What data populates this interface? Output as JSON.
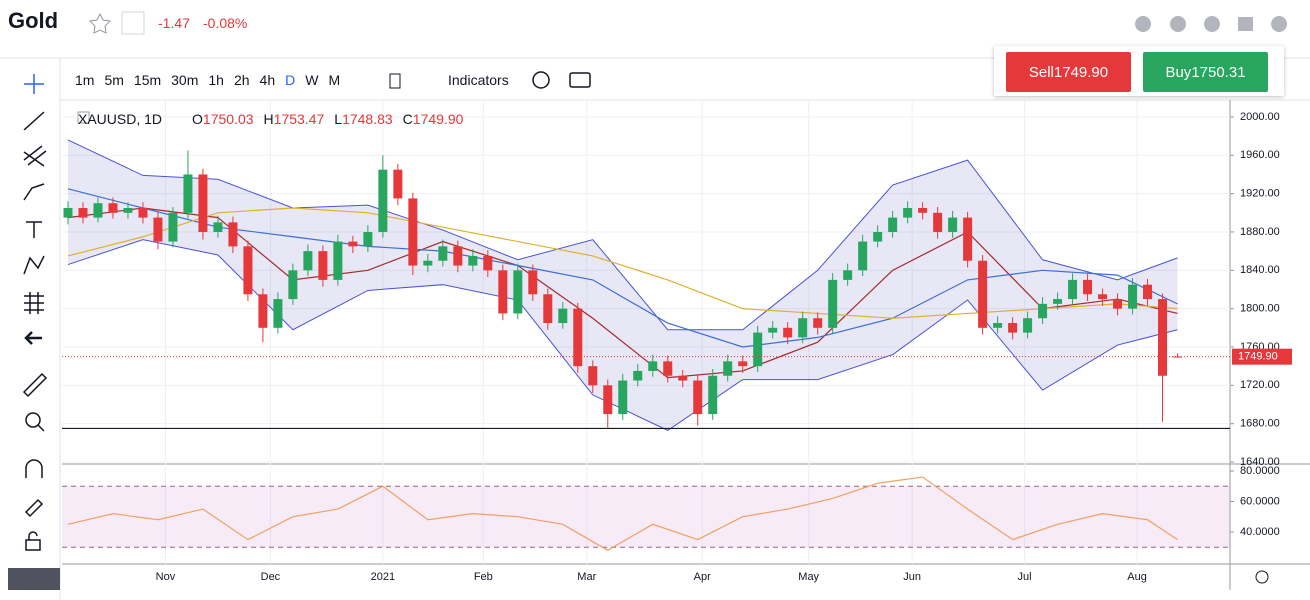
{
  "header": {
    "symbol": "Gold",
    "change": "-1.47",
    "change_pct": "-0.08%"
  },
  "toolbar": {
    "intervals": [
      "1m",
      "5m",
      "15m",
      "30m",
      "1h",
      "2h",
      "4h",
      "D",
      "W",
      "M"
    ],
    "indicators": "Indicators"
  },
  "trade": {
    "sell": "Sell",
    "sell_price": "1749.90",
    "buy": "Buy",
    "buy_price": "1750.31"
  },
  "legend": {
    "symbol": "XAUUSD, 1D",
    "items": [
      {
        "label": "O",
        "value": "1750.03"
      },
      {
        "label": "H",
        "value": "1753.47"
      },
      {
        "label": "L",
        "value": "1748.83"
      },
      {
        "label": "C",
        "value": "1749.90"
      }
    ]
  },
  "chart_data": [
    {
      "type": "candlestick",
      "up_color": "#28a55f",
      "down_color": "#e5383b",
      "candles": [
        [
          1895,
          1912,
          1888,
          1905
        ],
        [
          1905,
          1911,
          1889,
          1895
        ],
        [
          1895,
          1916,
          1890,
          1910
        ],
        [
          1910,
          1916,
          1894,
          1900
        ],
        [
          1900,
          1911,
          1894,
          1905
        ],
        [
          1905,
          1911,
          1889,
          1895
        ],
        [
          1895,
          1901,
          1862,
          1870
        ],
        [
          1870,
          1906,
          1864,
          1900
        ],
        [
          1900,
          1965,
          1894,
          1940
        ],
        [
          1940,
          1946,
          1872,
          1880
        ],
        [
          1880,
          1897,
          1874,
          1890
        ],
        [
          1890,
          1896,
          1858,
          1865
        ],
        [
          1865,
          1871,
          1808,
          1815
        ],
        [
          1815,
          1821,
          1765,
          1780
        ],
        [
          1780,
          1817,
          1774,
          1810
        ],
        [
          1810,
          1847,
          1804,
          1840
        ],
        [
          1840,
          1867,
          1834,
          1860
        ],
        [
          1860,
          1866,
          1823,
          1830
        ],
        [
          1830,
          1877,
          1824,
          1870
        ],
        [
          1870,
          1876,
          1858,
          1865
        ],
        [
          1865,
          1887,
          1859,
          1880
        ],
        [
          1880,
          1960,
          1874,
          1945
        ],
        [
          1945,
          1951,
          1908,
          1915
        ],
        [
          1915,
          1921,
          1835,
          1845
        ],
        [
          1845,
          1857,
          1838,
          1850
        ],
        [
          1850,
          1872,
          1844,
          1865
        ],
        [
          1865,
          1871,
          1838,
          1845
        ],
        [
          1845,
          1862,
          1839,
          1855
        ],
        [
          1855,
          1861,
          1833,
          1840
        ],
        [
          1840,
          1846,
          1788,
          1795
        ],
        [
          1795,
          1847,
          1789,
          1840
        ],
        [
          1840,
          1846,
          1808,
          1815
        ],
        [
          1815,
          1821,
          1778,
          1785
        ],
        [
          1785,
          1807,
          1779,
          1800
        ],
        [
          1800,
          1806,
          1733,
          1740
        ],
        [
          1740,
          1746,
          1712,
          1720
        ],
        [
          1720,
          1726,
          1675,
          1690
        ],
        [
          1690,
          1732,
          1684,
          1725
        ],
        [
          1725,
          1742,
          1719,
          1735
        ],
        [
          1735,
          1752,
          1729,
          1745
        ],
        [
          1745,
          1751,
          1723,
          1730
        ],
        [
          1730,
          1736,
          1718,
          1725
        ],
        [
          1725,
          1731,
          1678,
          1690
        ],
        [
          1690,
          1737,
          1684,
          1730
        ],
        [
          1730,
          1752,
          1724,
          1745
        ],
        [
          1745,
          1751,
          1733,
          1740
        ],
        [
          1740,
          1782,
          1734,
          1775
        ],
        [
          1775,
          1787,
          1769,
          1780
        ],
        [
          1780,
          1786,
          1763,
          1770
        ],
        [
          1770,
          1797,
          1764,
          1790
        ],
        [
          1790,
          1796,
          1773,
          1780
        ],
        [
          1780,
          1837,
          1774,
          1830
        ],
        [
          1830,
          1847,
          1824,
          1840
        ],
        [
          1840,
          1877,
          1834,
          1870
        ],
        [
          1870,
          1887,
          1864,
          1880
        ],
        [
          1880,
          1902,
          1874,
          1895
        ],
        [
          1895,
          1912,
          1889,
          1905
        ],
        [
          1905,
          1911,
          1893,
          1900
        ],
        [
          1900,
          1906,
          1873,
          1880
        ],
        [
          1880,
          1902,
          1874,
          1895
        ],
        [
          1895,
          1901,
          1843,
          1850
        ],
        [
          1850,
          1856,
          1773,
          1780
        ],
        [
          1780,
          1792,
          1774,
          1785
        ],
        [
          1785,
          1791,
          1768,
          1775
        ],
        [
          1775,
          1797,
          1769,
          1790
        ],
        [
          1790,
          1812,
          1784,
          1805
        ],
        [
          1805,
          1817,
          1799,
          1810
        ],
        [
          1810,
          1837,
          1804,
          1830
        ],
        [
          1830,
          1836,
          1808,
          1815
        ],
        [
          1815,
          1821,
          1803,
          1810
        ],
        [
          1810,
          1816,
          1793,
          1800
        ],
        [
          1800,
          1832,
          1794,
          1825
        ],
        [
          1825,
          1831,
          1803,
          1810
        ],
        [
          1810,
          1816,
          1682,
          1730
        ],
        [
          1750.03,
          1753.47,
          1748.83,
          1749.9
        ]
      ],
      "overlay_x": [
        0,
        5,
        10,
        15,
        20,
        25,
        30,
        35,
        40,
        45,
        50,
        55,
        60,
        65,
        70,
        74
      ],
      "bands": {
        "color": "#4a52d8",
        "fill": "rgba(120,123,200,0.18)",
        "upper": [
          1976,
          1939,
          1935,
          1905,
          1908,
          1882,
          1851,
          1872,
          1778,
          1778,
          1840,
          1929,
          1955,
          1851,
          1830,
          1853
        ],
        "lower": [
          1846,
          1872,
          1856,
          1778,
          1819,
          1825,
          1809,
          1710,
          1673,
          1726,
          1726,
          1752,
          1809,
          1715,
          1762,
          1778
        ]
      },
      "lines": [
        {
          "color": "#a52a2a",
          "values": [
            1895,
            1905,
            1895,
            1830,
            1840,
            1870,
            1845,
            1790,
            1728,
            1735,
            1765,
            1840,
            1880,
            1800,
            1810,
            1795
          ]
        },
        {
          "color": "#3a6fd8",
          "values": [
            1925,
            1905,
            1885,
            1875,
            1865,
            1860,
            1845,
            1830,
            1785,
            1760,
            1770,
            1790,
            1830,
            1840,
            1835,
            1805
          ]
        },
        {
          "color": "#e0b030",
          "values": [
            1855,
            1875,
            1900,
            1905,
            1900,
            1885,
            1870,
            1855,
            1830,
            1800,
            1795,
            1790,
            1795,
            1800,
            1805,
            1800
          ]
        }
      ],
      "hline": 1675,
      "price_label": "1749.90",
      "xlim": [
        -0.4,
        77.5
      ],
      "ylim": [
        1640,
        2017.7
      ],
      "yticks": [
        {
          "value": 2000,
          "label": "2000.00"
        },
        {
          "value": 1960,
          "label": "1960.00"
        },
        {
          "value": 1920,
          "label": "1920.00"
        },
        {
          "value": 1880,
          "label": "1880.00"
        },
        {
          "value": 1840,
          "label": "1840.00"
        },
        {
          "value": 1800,
          "label": "1800.00"
        },
        {
          "value": 1760,
          "label": "1760.00"
        },
        {
          "value": 1720,
          "label": "1720.00"
        },
        {
          "value": 1680,
          "label": "1680.00"
        },
        {
          "value": 1640,
          "label": "1640.00"
        }
      ],
      "xticks": [
        {
          "value": 6.5,
          "label": "Nov"
        },
        {
          "value": 13.5,
          "label": "Dec"
        },
        {
          "value": 21,
          "label": "2021"
        },
        {
          "value": 27.7,
          "label": "Feb"
        },
        {
          "value": 34.6,
          "label": "Mar"
        },
        {
          "value": 42.3,
          "label": "Apr"
        },
        {
          "value": 49.4,
          "label": "May"
        },
        {
          "value": 56.3,
          "label": "Jun"
        },
        {
          "value": 63.8,
          "label": "Jul"
        },
        {
          "value": 71.3,
          "label": "Aug"
        }
      ]
    },
    {
      "type": "line",
      "color": "#f0a060",
      "band_fill": "rgba(200,120,200,0.15)",
      "levels": [
        70,
        30
      ],
      "x": [
        0,
        3,
        6,
        9,
        12,
        15,
        18,
        21,
        24,
        27,
        30,
        33,
        36,
        39,
        42,
        45,
        48,
        51,
        54,
        57,
        60,
        63,
        66,
        69,
        72,
        74
      ],
      "values": [
        45,
        52,
        48,
        55,
        35,
        50,
        55,
        70,
        48,
        52,
        50,
        45,
        28,
        45,
        35,
        50,
        55,
        62,
        72,
        76,
        55,
        35,
        45,
        52,
        48,
        35
      ],
      "ylim": [
        20.3,
        82.6
      ],
      "yticks": [
        {
          "value": 80,
          "label": "80.0000"
        },
        {
          "value": 60,
          "label": "60.0000"
        },
        {
          "value": 40,
          "label": "40.0000"
        }
      ]
    }
  ]
}
